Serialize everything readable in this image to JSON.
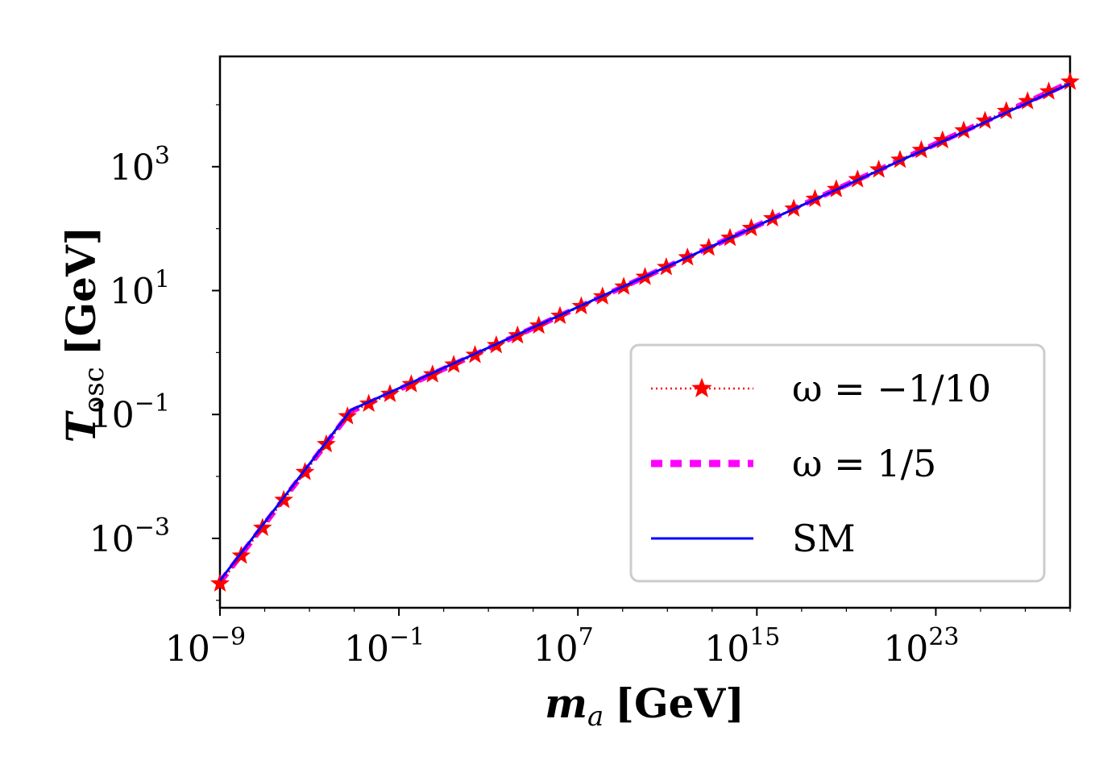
{
  "chart_data": {
    "type": "line",
    "xscale": "log10",
    "yscale": "log10",
    "xlabel": {
      "var": "m",
      "sub": "a",
      "unit": "[GeV]"
    },
    "ylabel": {
      "var": "T",
      "sub": "osc",
      "unit": "[GeV]"
    },
    "xlim_log10": [
      -9,
      29
    ],
    "ylim_log10": [
      -4.12,
      4.78
    ],
    "xticks": [
      {
        "exp": -9,
        "base": "10",
        "sup": "−9"
      },
      {
        "exp": -1,
        "base": "10",
        "sup": "−1"
      },
      {
        "exp": 7,
        "base": "10",
        "sup": "7"
      },
      {
        "exp": 15,
        "base": "10",
        "sup": "15"
      },
      {
        "exp": 23,
        "base": "10",
        "sup": "23"
      }
    ],
    "yticks": [
      {
        "exp": -3,
        "base": "10",
        "sup": "−3"
      },
      {
        "exp": -1,
        "base": "10",
        "sup": "−1"
      },
      {
        "exp": 1,
        "base": "10",
        "sup": "1"
      },
      {
        "exp": 3,
        "base": "10",
        "sup": "3"
      }
    ],
    "series": [
      {
        "name": "ω = −1/10",
        "label": "ω = −1/10",
        "color": "#ff0000",
        "style": "dotted-star",
        "log10_x": [
          -9,
          -3.15,
          29
        ],
        "log10_y": [
          -3.73,
          -0.96,
          4.37
        ]
      },
      {
        "name": "ω = 1/5",
        "label": "ω = 1/5",
        "color": "#ff00ff",
        "style": "dashed-thick",
        "log10_x": [
          -9,
          -3.15,
          29
        ],
        "log10_y": [
          -3.71,
          -0.95,
          4.36
        ]
      },
      {
        "name": "SM",
        "label": "SM",
        "color": "#0000ff",
        "style": "solid",
        "log10_x": [
          -9,
          -3.15,
          29
        ],
        "log10_y": [
          -3.68,
          -0.93,
          4.34
        ]
      }
    ],
    "legend": {
      "position": "lower-right"
    }
  }
}
